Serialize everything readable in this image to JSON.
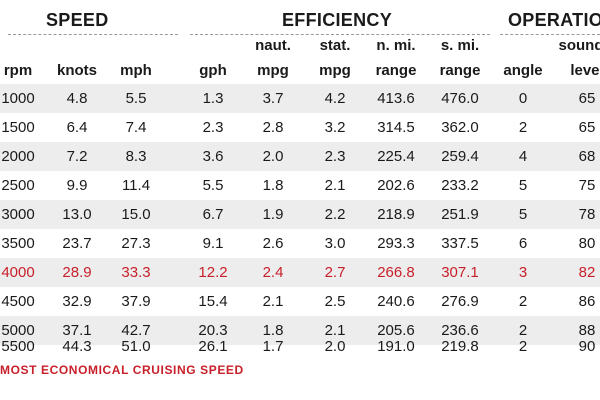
{
  "groups": {
    "speed": "SPEED",
    "efficiency": "EFFICIENCY",
    "operation": "OPERATION"
  },
  "headers_top": {
    "naut": "naut.",
    "stat_mpg": "stat.",
    "n_mi": "n. mi.",
    "s_mi": "s. mi.",
    "sound": "sound"
  },
  "headers_bottom": [
    "rpm",
    "knots",
    "mph",
    "gph",
    "mpg",
    "mpg",
    "range",
    "range",
    "angle",
    "level"
  ],
  "rows": [
    [
      "1000",
      "4.8",
      "5.5",
      "1.3",
      "3.7",
      "4.2",
      "413.6",
      "476.0",
      "0",
      "65"
    ],
    [
      "1500",
      "6.4",
      "7.4",
      "2.3",
      "2.8",
      "3.2",
      "314.5",
      "362.0",
      "2",
      "65"
    ],
    [
      "2000",
      "7.2",
      "8.3",
      "3.6",
      "2.0",
      "2.3",
      "225.4",
      "259.4",
      "4",
      "68"
    ],
    [
      "2500",
      "9.9",
      "11.4",
      "5.5",
      "1.8",
      "2.1",
      "202.6",
      "233.2",
      "5",
      "75"
    ],
    [
      "3000",
      "13.0",
      "15.0",
      "6.7",
      "1.9",
      "2.2",
      "218.9",
      "251.9",
      "5",
      "78"
    ],
    [
      "3500",
      "23.7",
      "27.3",
      "9.1",
      "2.6",
      "3.0",
      "293.3",
      "337.5",
      "6",
      "80"
    ],
    [
      "4000",
      "28.9",
      "33.3",
      "12.2",
      "2.4",
      "2.7",
      "266.8",
      "307.1",
      "3",
      "82"
    ],
    [
      "4500",
      "32.9",
      "37.9",
      "15.4",
      "2.1",
      "2.5",
      "240.6",
      "276.9",
      "2",
      "86"
    ],
    [
      "5000",
      "37.1",
      "42.7",
      "20.3",
      "1.8",
      "2.1",
      "205.6",
      "236.6",
      "2",
      "88"
    ],
    [
      "5500",
      "44.3",
      "51.0",
      "26.1",
      "1.7",
      "2.0",
      "191.0",
      "219.8",
      "2",
      "90"
    ]
  ],
  "highlight_row": "4000",
  "footnote": "MOST ECONOMICAL CRUISING SPEED",
  "colors": {
    "highlight": "#c8202a",
    "alt_row": "#ededed",
    "text": "#1a1a1a"
  }
}
